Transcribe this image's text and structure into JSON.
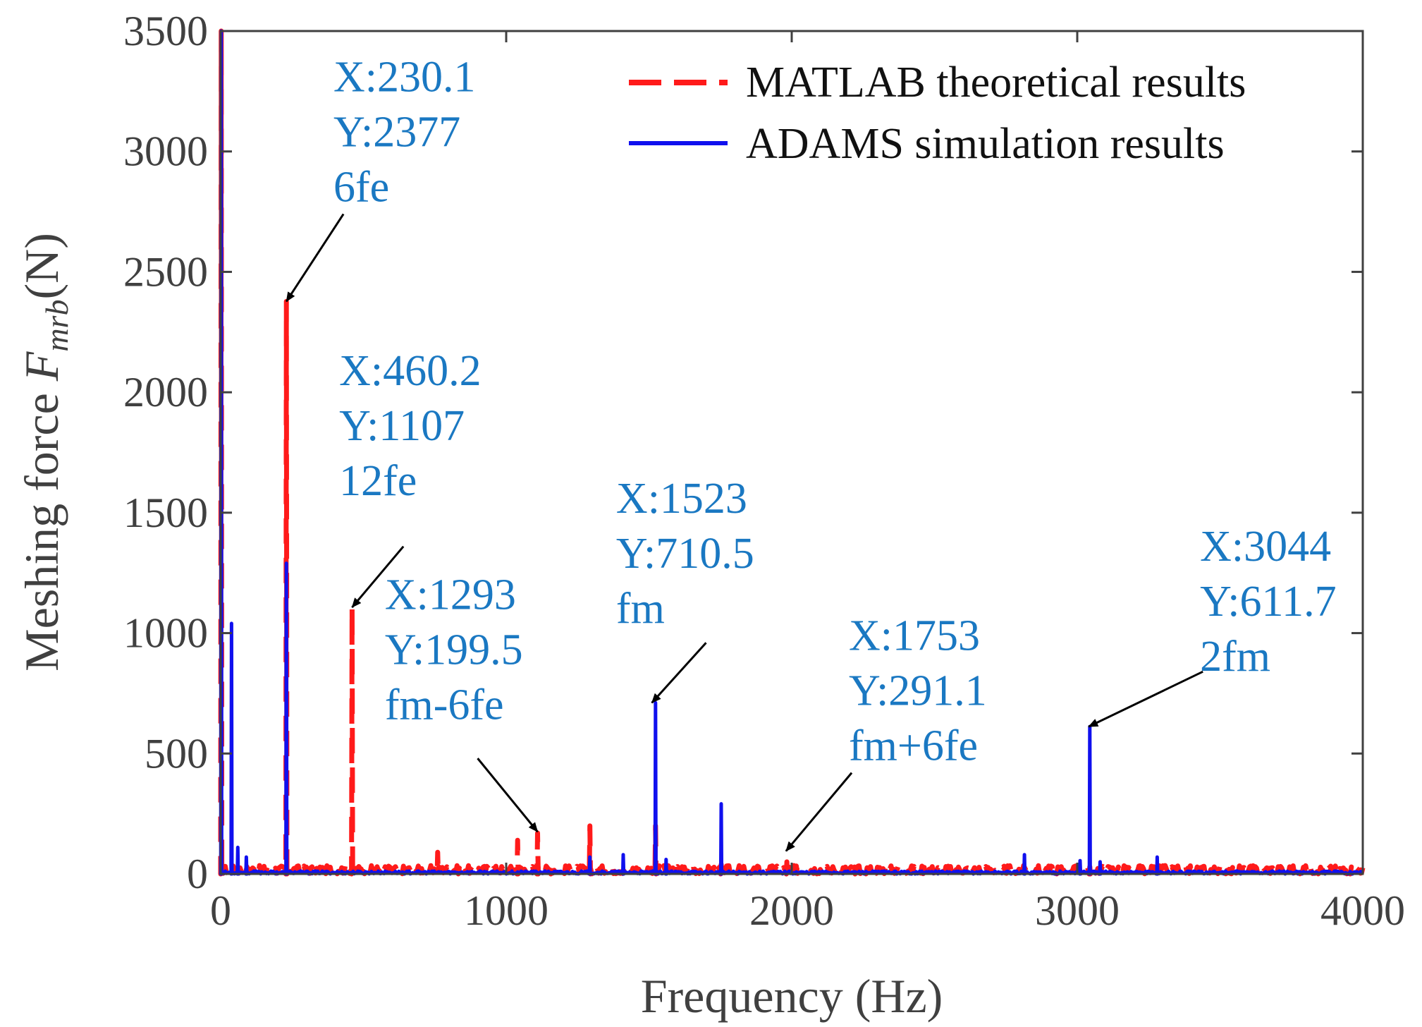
{
  "chart_data": {
    "type": "line",
    "title": "",
    "xlabel": "Frequency (Hz)",
    "ylabel": {
      "prefix": "Meshing force ",
      "symbol": "F",
      "subscript": "mrb",
      "unit": "(N)"
    },
    "xlim": [
      0,
      4000
    ],
    "ylim": [
      0,
      3500
    ],
    "xticks": [
      0,
      1000,
      2000,
      3000,
      4000
    ],
    "yticks": [
      0,
      500,
      1000,
      1500,
      2000,
      2500,
      3000,
      3500
    ],
    "grid": false,
    "legend_position": "top-right",
    "colors": {
      "matlab": "#ff1a1a",
      "adams": "#1010ee",
      "annotation": "#1a78c2",
      "axis": "#404040"
    },
    "series": [
      {
        "name": "MATLAB theoretical results",
        "style": "dashed",
        "peaks": [
          {
            "x": 2,
            "y": 3500
          },
          {
            "x": 230.1,
            "y": 2377
          },
          {
            "x": 460.2,
            "y": 1107
          },
          {
            "x": 760,
            "y": 90
          },
          {
            "x": 1040,
            "y": 140
          },
          {
            "x": 1110,
            "y": 170
          },
          {
            "x": 1293,
            "y": 199.5
          },
          {
            "x": 1523,
            "y": 200
          },
          {
            "x": 1753,
            "y": 40
          },
          {
            "x": 1983,
            "y": 50
          },
          {
            "x": 2220,
            "y": 25
          },
          {
            "x": 3044,
            "y": 30
          }
        ]
      },
      {
        "name": "ADAMS simulation results",
        "style": "solid",
        "peaks": [
          {
            "x": 2,
            "y": 3500
          },
          {
            "x": 38,
            "y": 1040
          },
          {
            "x": 60,
            "y": 110
          },
          {
            "x": 90,
            "y": 70
          },
          {
            "x": 230.1,
            "y": 1290
          },
          {
            "x": 1293,
            "y": 70
          },
          {
            "x": 1410,
            "y": 80
          },
          {
            "x": 1523,
            "y": 710.5
          },
          {
            "x": 1560,
            "y": 60
          },
          {
            "x": 1753,
            "y": 291.1
          },
          {
            "x": 2815,
            "y": 80
          },
          {
            "x": 3010,
            "y": 55
          },
          {
            "x": 3044,
            "y": 611.7
          },
          {
            "x": 3080,
            "y": 50
          },
          {
            "x": 3280,
            "y": 70
          }
        ]
      }
    ],
    "annotations": [
      {
        "lines": [
          "X:230.1",
          "Y:2377",
          "6fe"
        ],
        "target": {
          "x": 230.1,
          "y": 2377
        },
        "text_at": {
          "x": 395,
          "y": 3250
        },
        "arrow_from": {
          "x": 430,
          "y": 2740
        }
      },
      {
        "lines": [
          "X:460.2",
          "Y:1107",
          "12fe"
        ],
        "target": {
          "x": 460.2,
          "y": 1107
        },
        "text_at": {
          "x": 415,
          "y": 2030
        },
        "arrow_from": {
          "x": 640,
          "y": 1360
        }
      },
      {
        "lines": [
          "X:1293",
          "Y:199.5",
          "fm-6fe"
        ],
        "target": {
          "x": 1110,
          "y": 175
        },
        "text_at": {
          "x": 575,
          "y": 1100
        },
        "arrow_from": {
          "x": 900,
          "y": 480
        }
      },
      {
        "lines": [
          "X:1523",
          "Y:710.5",
          "fm"
        ],
        "target": {
          "x": 1510,
          "y": 710.5
        },
        "text_at": {
          "x": 1385,
          "y": 1500
        },
        "arrow_from": {
          "x": 1700,
          "y": 960
        }
      },
      {
        "lines": [
          "X:1753",
          "Y:291.1",
          "fm+6fe"
        ],
        "target": {
          "x": 1980,
          "y": 95
        },
        "text_at": {
          "x": 2200,
          "y": 930
        },
        "arrow_from": {
          "x": 2210,
          "y": 420
        }
      },
      {
        "lines": [
          "X:3044",
          "Y:611.7",
          "2fm"
        ],
        "target": {
          "x": 3040,
          "y": 611.7
        },
        "text_at": {
          "x": 3430,
          "y": 1300
        },
        "arrow_from": {
          "x": 3440,
          "y": 840
        }
      }
    ]
  }
}
